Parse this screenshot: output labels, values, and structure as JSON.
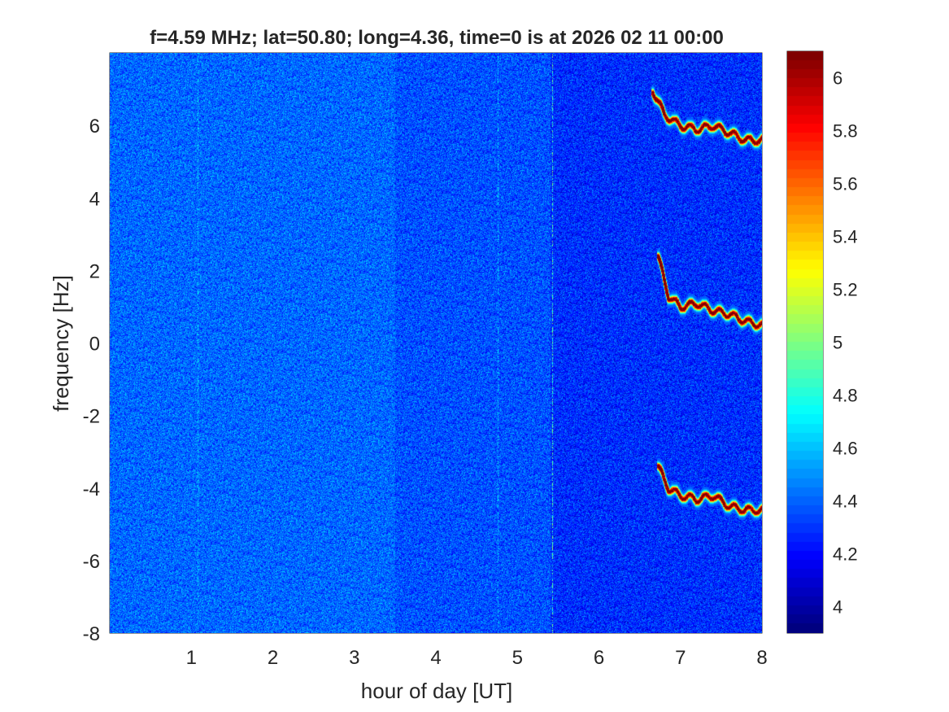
{
  "chart_data": {
    "type": "heatmap",
    "title": "f=4.59 MHz;  lat=50.80; long=4.36, time=0 is at 2026 02 11 00:00",
    "xlabel": "hour of day [UT]",
    "ylabel": "frequency [Hz]",
    "xlim": [
      0,
      8
    ],
    "ylim": [
      -8,
      8
    ],
    "xticks": [
      1,
      2,
      3,
      4,
      5,
      6,
      7,
      8
    ],
    "xtick_labels": [
      "1",
      "2",
      "3",
      "4",
      "5",
      "6",
      "7",
      "8"
    ],
    "yticks": [
      -8,
      -6,
      -4,
      -2,
      0,
      2,
      4,
      6
    ],
    "ytick_labels": [
      "-8",
      "-6",
      "-4",
      "-2",
      "0",
      "2",
      "4",
      "6"
    ],
    "colormap": "jet",
    "clim": [
      3.9,
      6.1
    ],
    "colorbar_ticks": [
      4,
      4.2,
      4.4,
      4.6,
      4.8,
      5,
      5.2,
      5.4,
      5.6,
      5.8,
      6
    ],
    "colorbar_tick_labels": [
      "4",
      "4.2",
      "4.4",
      "4.6",
      "4.8",
      "5",
      "5.2",
      "5.4",
      "5.6",
      "5.8",
      "6"
    ],
    "background_level": 4.35,
    "features": [
      {
        "kind": "trace",
        "points": [
          [
            6.65,
            7.0
          ],
          [
            6.8,
            6.3
          ],
          [
            7.0,
            6.0
          ],
          [
            7.2,
            5.9
          ],
          [
            7.4,
            6.0
          ],
          [
            7.6,
            5.8
          ],
          [
            7.8,
            5.6
          ],
          [
            8.0,
            5.6
          ]
        ],
        "level": 6.1
      },
      {
        "kind": "trace",
        "points": [
          [
            6.72,
            2.4
          ],
          [
            6.85,
            1.3
          ],
          [
            7.0,
            1.0
          ],
          [
            7.2,
            1.1
          ],
          [
            7.4,
            0.9
          ],
          [
            7.6,
            0.8
          ],
          [
            7.8,
            0.6
          ],
          [
            8.0,
            0.5
          ]
        ],
        "level": 6.1
      },
      {
        "kind": "trace",
        "points": [
          [
            6.72,
            -3.4
          ],
          [
            6.85,
            -4.0
          ],
          [
            7.0,
            -4.2
          ],
          [
            7.2,
            -4.3
          ],
          [
            7.4,
            -4.2
          ],
          [
            7.6,
            -4.5
          ],
          [
            7.8,
            -4.6
          ],
          [
            8.0,
            -4.6
          ]
        ],
        "level": 6.1
      },
      {
        "kind": "vertical_line",
        "x": 5.43,
        "level": 4.9
      },
      {
        "kind": "vertical_line",
        "x": 4.76,
        "level": 4.6
      },
      {
        "kind": "vertical_line",
        "x": 1.08,
        "level": 4.6
      }
    ]
  }
}
